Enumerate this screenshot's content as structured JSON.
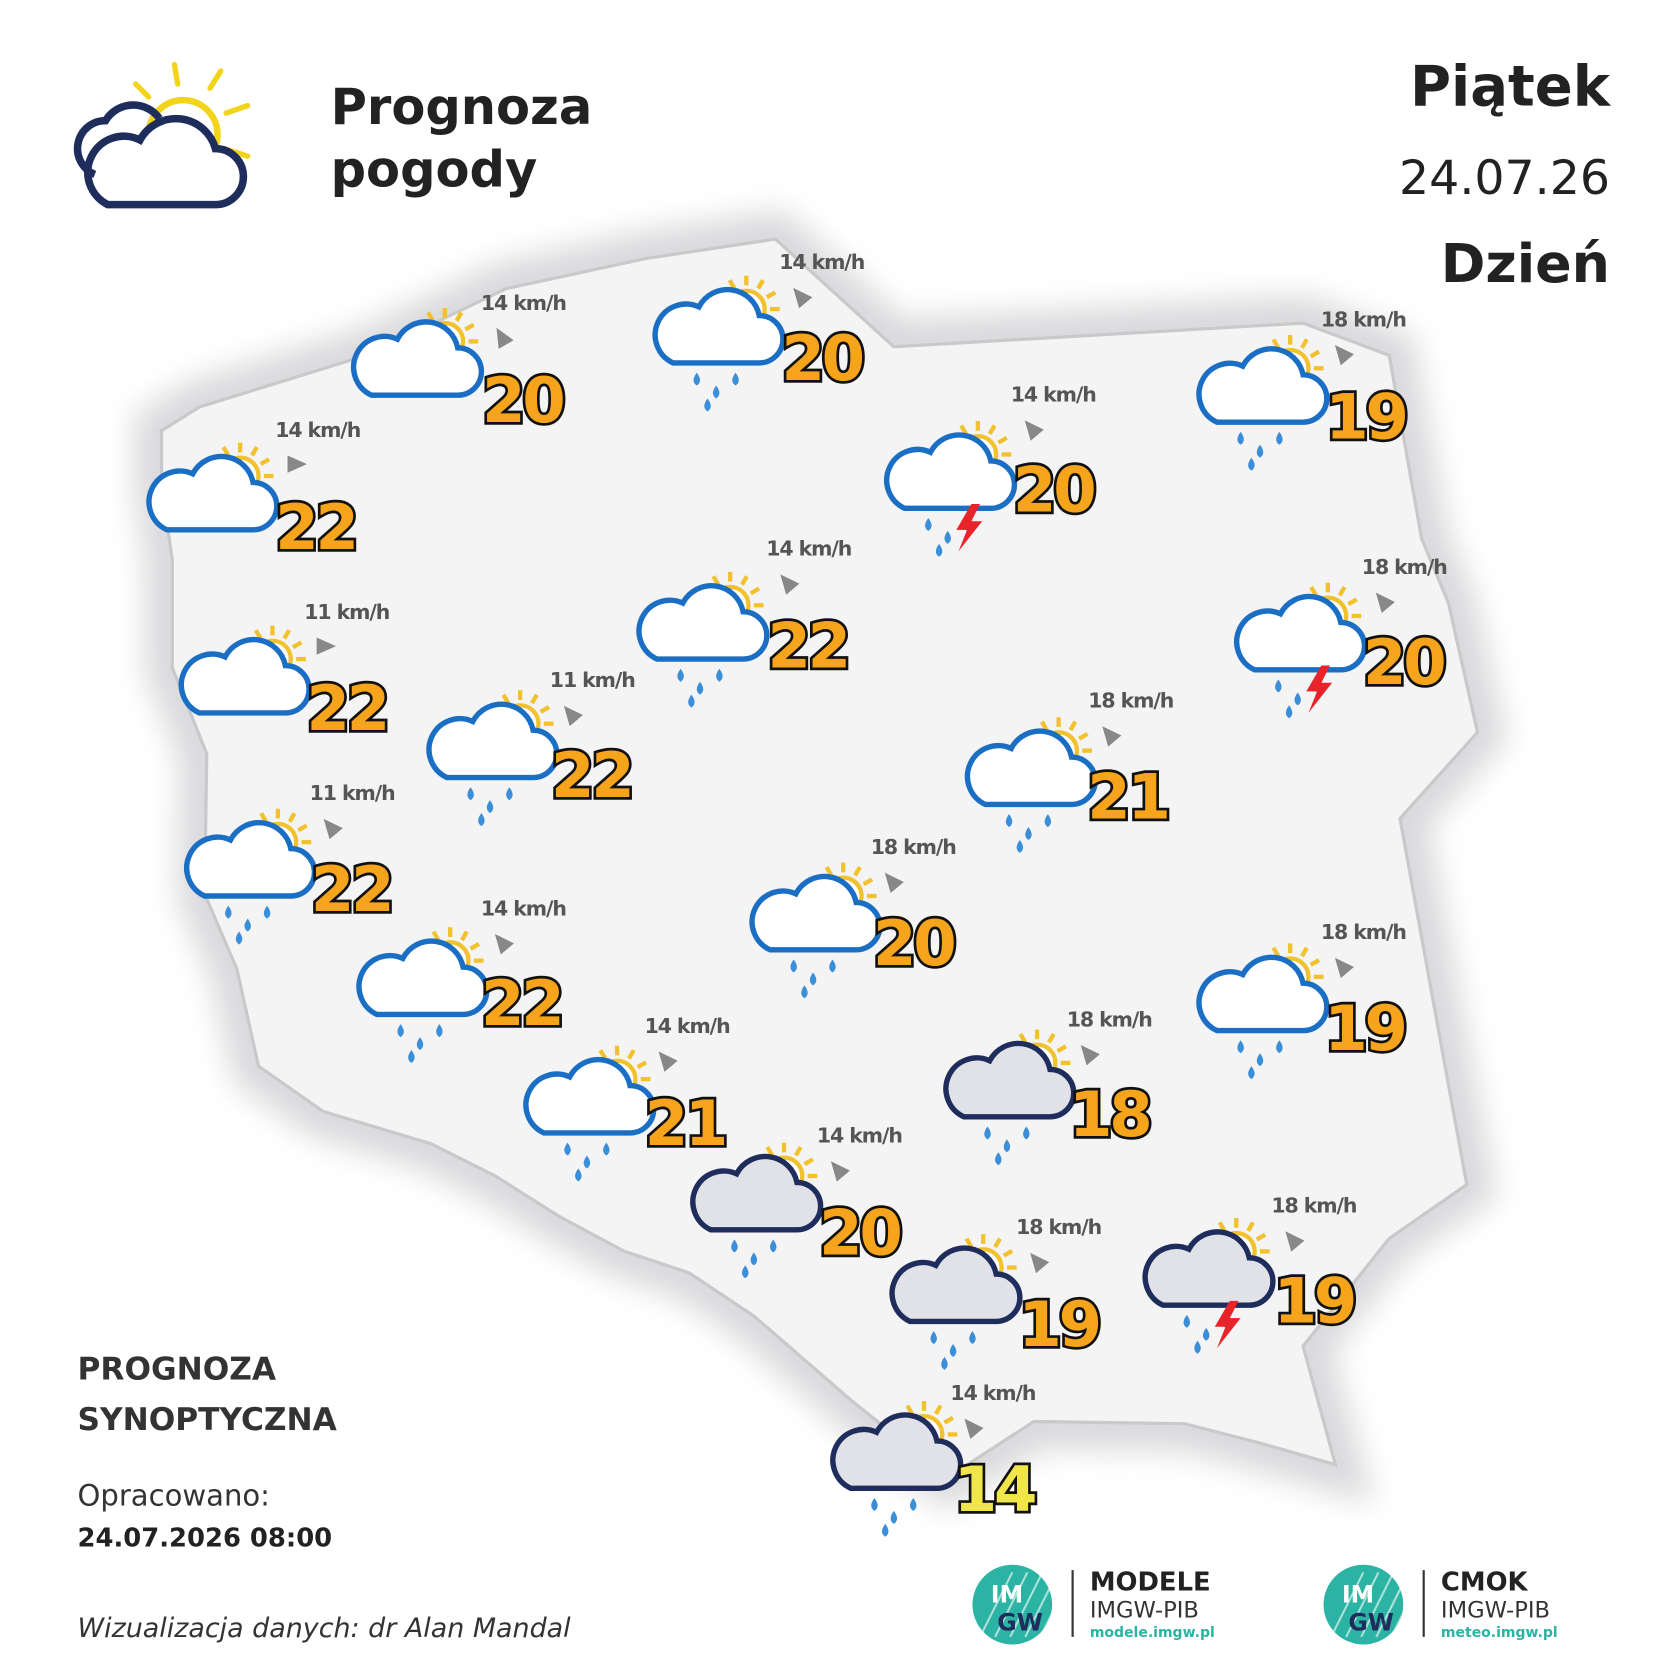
{
  "header": {
    "title_lines": [
      "Prognoza",
      "pogody"
    ],
    "day": "Piątek",
    "date": "24.07.26",
    "period": "Dzień"
  },
  "locations": [
    {
      "temp": "20",
      "wind": "14 km/h"
    },
    {
      "temp": "20",
      "wind": "14 km/h"
    },
    {
      "temp": "22",
      "wind": "14 km/h"
    },
    {
      "temp": "19",
      "wind": "18 km/h"
    },
    {
      "temp": "20",
      "wind": "14 km/h"
    },
    {
      "temp": "22",
      "wind": "14 km/h"
    },
    {
      "temp": "22",
      "wind": "11 km/h"
    },
    {
      "temp": "20",
      "wind": "18 km/h"
    },
    {
      "temp": "22",
      "wind": "11 km/h"
    },
    {
      "temp": "21",
      "wind": "18 km/h"
    },
    {
      "temp": "22",
      "wind": "11 km/h"
    },
    {
      "temp": "20",
      "wind": "18 km/h"
    },
    {
      "temp": "22",
      "wind": "14 km/h"
    },
    {
      "temp": "18",
      "wind": "18 km/h"
    },
    {
      "temp": "19",
      "wind": "18 km/h"
    },
    {
      "temp": "21",
      "wind": "14 km/h"
    },
    {
      "temp": "20",
      "wind": "14 km/h"
    },
    {
      "temp": "19",
      "wind": "18 km/h"
    },
    {
      "temp": "19",
      "wind": "18 km/h"
    },
    {
      "temp": "14",
      "wind": "14 km/h"
    }
  ],
  "footer": {
    "kind_lines": [
      "PROGNOZA",
      "SYNOPTYCZNA"
    ],
    "prepared_label": "Opracowano:",
    "prepared": "24.07.2026 08:00",
    "credit": "Wizualizacja danych: dr Alan Mandal"
  },
  "logos": [
    {
      "mark": [
        "IM",
        "GW"
      ],
      "name": "MODELE",
      "org": "IMGW-PIB",
      "url": "modele.imgw.pl"
    },
    {
      "mark": [
        "IM",
        "GW"
      ],
      "name": "CMOK",
      "org": "IMGW-PIB",
      "url": "meteo.imgw.pl"
    }
  ]
}
